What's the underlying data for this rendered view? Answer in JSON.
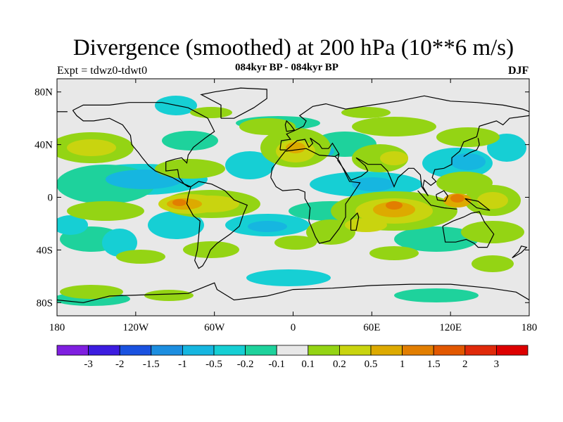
{
  "title": "Divergence (smoothed) at 200 hPa (10**6 m/s)",
  "subtitle": "084kyr BP - 084kyr BP",
  "experiment": "Expt = tdwz0-tdwt0",
  "season": "DJF",
  "y_axis_ticks": [
    "80N",
    "40N",
    "0",
    "40S",
    "80S"
  ],
  "x_axis_ticks": [
    "180",
    "120W",
    "60W",
    "0",
    "60E",
    "120E",
    "180"
  ],
  "colorbar": {
    "labels": [
      "-3",
      "-2",
      "-1.5",
      "-1",
      "-0.5",
      "-0.2",
      "-0.1",
      "0.1",
      "0.2",
      "0.5",
      "1",
      "1.5",
      "2",
      "3"
    ],
    "colors": [
      "#7f1fe0",
      "#3c1ce0",
      "#1a52e0",
      "#1c8ee0",
      "#16b6e0",
      "#16cfd4",
      "#1ed29c",
      "#e8e8e8",
      "#94d414",
      "#c9d40f",
      "#ddaa00",
      "#e27e00",
      "#e25800",
      "#e02a0a",
      "#dd0000"
    ]
  }
}
